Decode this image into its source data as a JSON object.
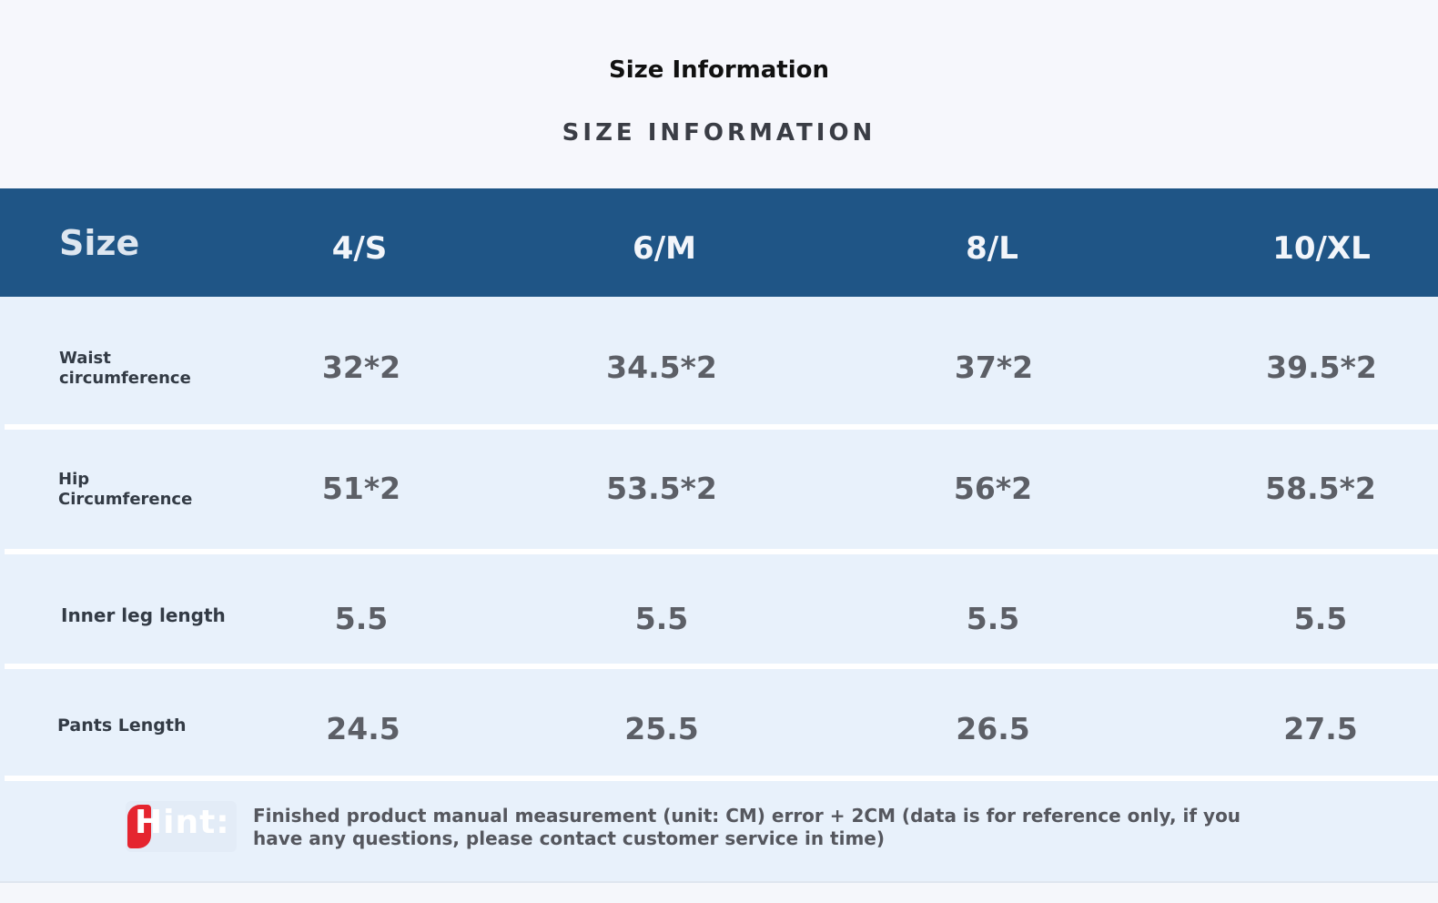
{
  "title": "Size Information",
  "subtitle": "SIZE INFORMATION",
  "table": {
    "header_label": "Size",
    "sizes": [
      "4/S",
      "6/M",
      "8/L",
      "10/XL"
    ],
    "rows": [
      {
        "label_line1": "Waist",
        "label_line2": "circumference",
        "values": [
          "32*2",
          "34.5*2",
          "37*2",
          "39.5*2"
        ]
      },
      {
        "label_line1": "Hip",
        "label_line2": "Circumference",
        "values": [
          "51*2",
          "53.5*2",
          "56*2",
          "58.5*2"
        ]
      },
      {
        "label_line1": "Inner leg length",
        "label_line2": "",
        "values": [
          "5.5",
          "5.5",
          "5.5",
          "5.5"
        ]
      },
      {
        "label_line1": "Pants Length",
        "label_line2": "",
        "values": [
          "24.5",
          "25.5",
          "26.5",
          "27.5"
        ]
      }
    ]
  },
  "hint": {
    "label": "Hint:",
    "text": "Finished product manual measurement (unit: CM) error + 2CM (data is for reference only, if you have any questions, please contact customer service in time)"
  },
  "colors": {
    "header_band": "#1f5586",
    "table_body": "#e8f1fb",
    "hint_mark": "#e5252f"
  }
}
